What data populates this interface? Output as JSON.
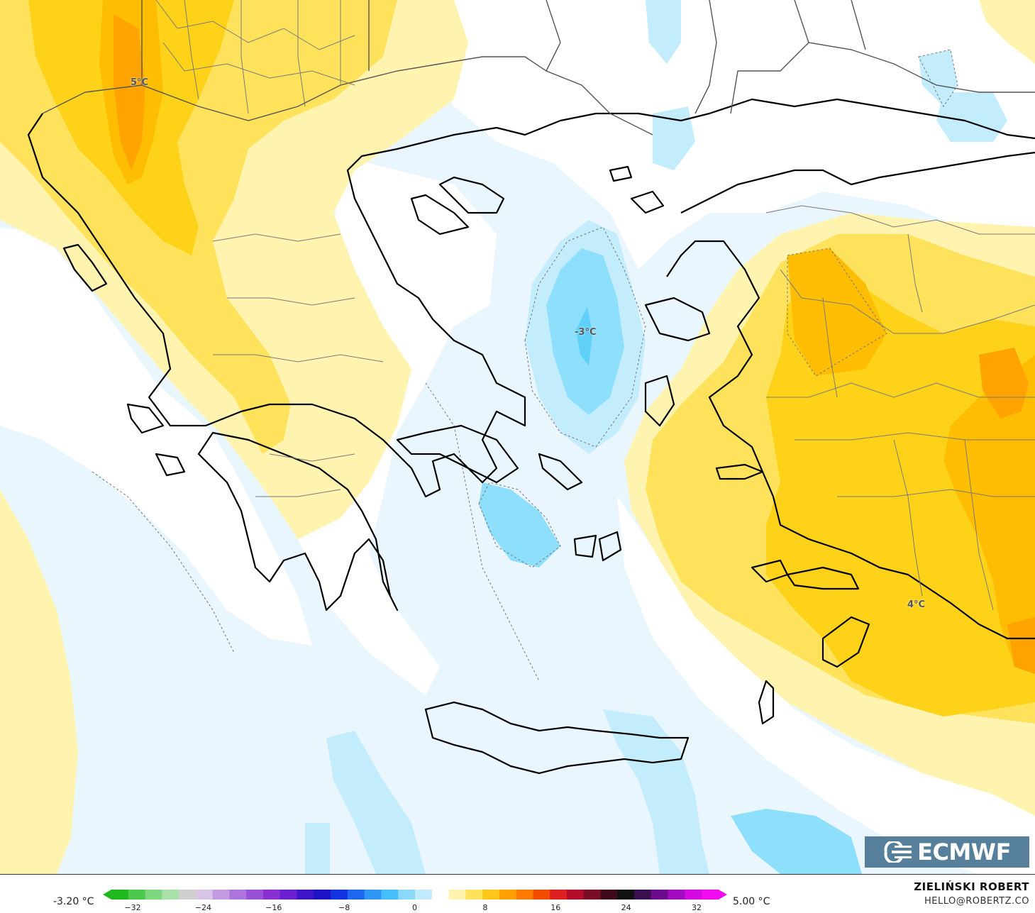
{
  "map": {
    "labels": {
      "north": "5°C",
      "aegean": "-3°C",
      "east": "4°C"
    }
  },
  "logo": {
    "text": "ECMWF"
  },
  "legend": {
    "min_value": "-3.20 °C",
    "max_value": "5.00 °C",
    "ticks": [
      "−32",
      "−24",
      "−16",
      "−8",
      "0",
      "8",
      "16",
      "24",
      "32"
    ],
    "colors": [
      "#1fb81f",
      "#4cc84c",
      "#7ed67e",
      "#a9e0a9",
      "#cfcfcf",
      "#d7c4e6",
      "#c49be0",
      "#ad74db",
      "#9850d6",
      "#8a2fd2",
      "#6a1fd0",
      "#3d14c8",
      "#1b13c4",
      "#1233e0",
      "#1f66ef",
      "#2f97f6",
      "#45bff8",
      "#8ad9fb",
      "#c0ecfd",
      "#ffffff",
      "#fff3b0",
      "#ffe25c",
      "#ffc71a",
      "#ffa000",
      "#ff7a00",
      "#f24c00",
      "#de1f1f",
      "#b30d2b",
      "#7a0d25",
      "#3f0a1a",
      "#111111",
      "#3a0f52",
      "#6c0c8c",
      "#a20bc2",
      "#d40ae0",
      "#f10af0"
    ]
  },
  "credits": {
    "author": "ZIELIŃSKI ROBERT",
    "email": "HELLO@ROBERTZ.CO"
  }
}
